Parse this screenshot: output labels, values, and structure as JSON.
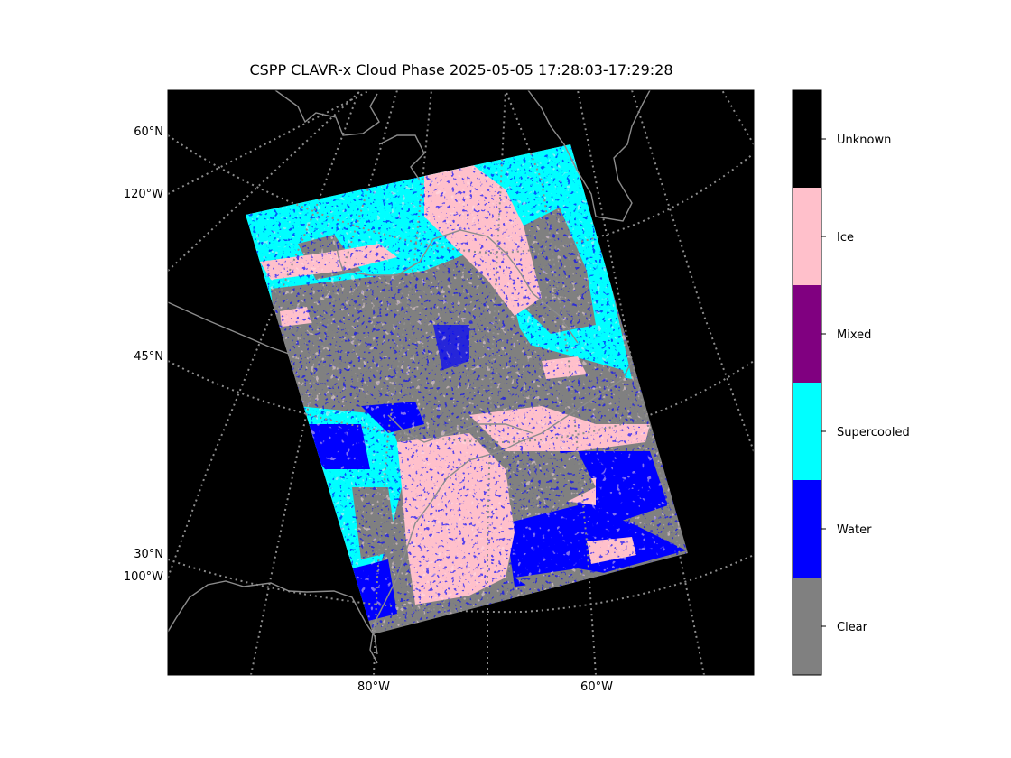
{
  "title": "CSPP CLAVR-x Cloud Phase 2025-05-05 17:28:03-17:29:28",
  "map": {
    "background_color": "#000000",
    "gridline_color": "#8c8c8c",
    "coastline_color": "#8c8c8c",
    "lat_labels": [
      {
        "id": "60n",
        "text": "60°N"
      },
      {
        "id": "120w",
        "text": "120°W"
      },
      {
        "id": "45n",
        "text": "45°N"
      },
      {
        "id": "30n",
        "text": "30°N"
      },
      {
        "id": "100w",
        "text": "100°W"
      }
    ],
    "lon_labels": [
      {
        "id": "80w",
        "text": "80°W"
      },
      {
        "id": "60w",
        "text": "60°W"
      }
    ]
  },
  "colorbar": {
    "categories": [
      {
        "label": "Unknown",
        "color": "#000000"
      },
      {
        "label": "Ice",
        "color": "#ffc0cb"
      },
      {
        "label": "Mixed",
        "color": "#800080"
      },
      {
        "label": "Supercooled",
        "color": "#00ffff"
      },
      {
        "label": "Water",
        "color": "#0000ff"
      },
      {
        "label": "Clear",
        "color": "#808080"
      }
    ]
  }
}
